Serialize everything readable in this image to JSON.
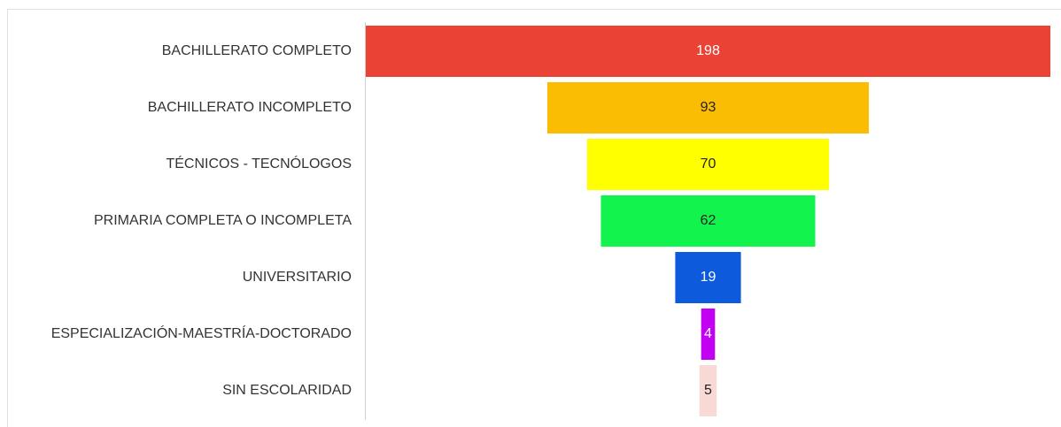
{
  "chart_data": {
    "type": "funnel",
    "categories": [
      "BACHILLERATO COMPLETO",
      "BACHILLERATO INCOMPLETO",
      "TÉCNICOS - TECNÓLOGOS",
      "PRIMARIA COMPLETA O INCOMPLETA",
      "UNIVERSITARIO",
      "ESPECIALIZACIÓN-MAESTRÍA-DOCTORADO",
      "SIN ESCOLARIDAD"
    ],
    "values": [
      198,
      93,
      70,
      62,
      19,
      4,
      5
    ],
    "colors": [
      "#ea4335",
      "#fbbc04",
      "#ffff00",
      "#12f44d",
      "#0d5bdc",
      "#c200f2",
      "#f9d9d6"
    ]
  }
}
